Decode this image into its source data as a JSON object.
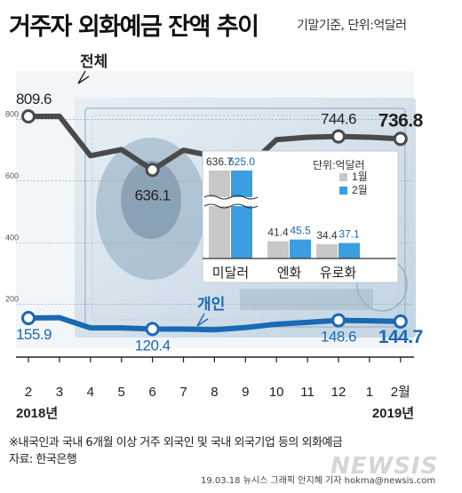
{
  "header": {
    "title": "거주자 외화예금 잔액 추이",
    "subtitle": "기말기준, 단위:억달러"
  },
  "chart_data": [
    {
      "type": "line",
      "categories": [
        "2",
        "3",
        "4",
        "5",
        "6",
        "7",
        "8",
        "9",
        "10",
        "11",
        "12",
        "1",
        "2월"
      ],
      "year_labels": [
        "2018년",
        "2019년"
      ],
      "y_ticks": [
        800,
        600,
        400,
        200
      ],
      "ylim": [
        100,
        850
      ],
      "series": [
        {
          "name": "전체",
          "values": [
            809.6,
            810.0,
            682.0,
            702.0,
            636.1,
            700.0,
            680.0,
            638.0,
            734.0,
            742.0,
            744.6,
            742.0,
            736.8
          ],
          "labels": {
            "0": "809.6",
            "4": "636.1",
            "10": "744.6",
            "12": "736.8"
          }
        },
        {
          "name": "개인",
          "values": [
            155.9,
            157.0,
            124.0,
            124.0,
            120.4,
            120.0,
            118.0,
            125.0,
            136.0,
            142.0,
            148.6,
            147.0,
            144.7
          ],
          "labels": {
            "0": "155.9",
            "4": "120.4",
            "10": "148.6",
            "12": "144.7"
          }
        }
      ],
      "colors": {
        "전체": "#4a4a4a",
        "개인": "#1a69b3"
      }
    },
    {
      "type": "bar",
      "unit_label": "단위:억달러",
      "categories": [
        "미달러",
        "엔화",
        "유로화"
      ],
      "series": [
        {
          "name": "1월",
          "values": [
            636.7,
            41.4,
            34.4
          ],
          "labels": [
            "636.7",
            "41.4",
            "34.4"
          ]
        },
        {
          "name": "2월",
          "values": [
            625.0,
            45.5,
            37.1
          ],
          "labels": [
            "625.0",
            "45.5",
            "37.1"
          ]
        }
      ],
      "colors": {
        "1월": "#c8c8c8",
        "2월": "#3a9ee0"
      }
    }
  ],
  "footer": {
    "note": "※내국인과 국내 6개월 이상 거주 외국인 및 국내 외국기업 등의 외화예금",
    "source": "자료: 한국은행",
    "credit": "19.03.18 뉴시스 그래픽 안지혜 기자 hokma@newsis.com",
    "watermark": "NEWSIS"
  }
}
